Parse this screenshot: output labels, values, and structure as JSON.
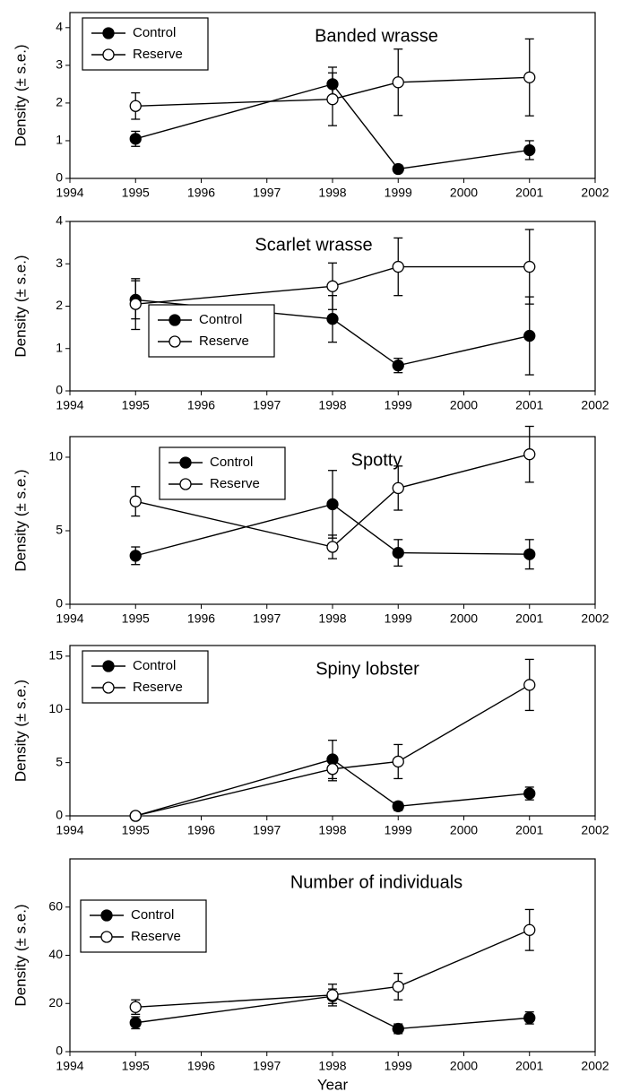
{
  "chart_data": [
    {
      "type": "line",
      "title": "Banded wrasse",
      "ylabel": "Density (± s.e.)",
      "x": [
        1995,
        1998,
        1999,
        2001
      ],
      "xlim": [
        1994,
        2002
      ],
      "xticks": [
        1994,
        1995,
        1996,
        1997,
        1998,
        1999,
        2000,
        2001,
        2002
      ],
      "ylim": [
        0,
        4.4
      ],
      "yticks": [
        0,
        1,
        2,
        3,
        4
      ],
      "grid": false,
      "legend": "upper left",
      "series": [
        {
          "name": "Control",
          "color": "#000000",
          "marker_fill": "#000000",
          "values": [
            1.05,
            2.5,
            0.25,
            0.75
          ],
          "errors": [
            0.2,
            0.45,
            0.1,
            0.25
          ]
        },
        {
          "name": "Reserve",
          "color": "#000000",
          "marker_fill": "#ffffff",
          "values": [
            1.92,
            2.1,
            2.55,
            2.68
          ],
          "errors": [
            0.35,
            0.7,
            0.88,
            1.02
          ]
        }
      ]
    },
    {
      "type": "line",
      "title": "Scarlet wrasse",
      "ylabel": "Density (± s.e.)",
      "x": [
        1995,
        1998,
        1999,
        2001
      ],
      "xlim": [
        1994,
        2002
      ],
      "xticks": [
        1994,
        1995,
        1996,
        1997,
        1998,
        1999,
        2000,
        2001,
        2002
      ],
      "ylim": [
        0,
        4
      ],
      "yticks": [
        0,
        1,
        2,
        3,
        4
      ],
      "grid": false,
      "legend": "lower left",
      "series": [
        {
          "name": "Control",
          "color": "#000000",
          "marker_fill": "#000000",
          "values": [
            2.15,
            1.7,
            0.6,
            1.3
          ],
          "errors": [
            0.45,
            0.55,
            0.17,
            0.92
          ]
        },
        {
          "name": "Reserve",
          "color": "#000000",
          "marker_fill": "#ffffff",
          "values": [
            2.05,
            2.47,
            2.93,
            2.93
          ],
          "errors": [
            0.6,
            0.55,
            0.68,
            0.88
          ]
        }
      ]
    },
    {
      "type": "line",
      "title": "Spotty",
      "ylabel": "Density (± s.e.)",
      "x": [
        1995,
        1998,
        1999,
        2001
      ],
      "xlim": [
        1994,
        2002
      ],
      "xticks": [
        1994,
        1995,
        1996,
        1997,
        1998,
        1999,
        2000,
        2001,
        2002
      ],
      "ylim": [
        0,
        11.4
      ],
      "yticks": [
        0,
        5,
        10
      ],
      "grid": false,
      "legend": "upper center",
      "series": [
        {
          "name": "Control",
          "color": "#000000",
          "marker_fill": "#000000",
          "values": [
            3.3,
            6.8,
            3.5,
            3.4
          ],
          "errors": [
            0.6,
            2.3,
            0.9,
            1.0
          ]
        },
        {
          "name": "Reserve",
          "color": "#000000",
          "marker_fill": "#ffffff",
          "values": [
            7.0,
            3.9,
            7.9,
            10.2
          ],
          "errors": [
            1.0,
            0.8,
            1.5,
            1.9
          ]
        }
      ]
    },
    {
      "type": "line",
      "title": "Spiny lobster",
      "ylabel": "Density (± s.e.)",
      "x": [
        1995,
        1998,
        1999,
        2001
      ],
      "xlim": [
        1994,
        2002
      ],
      "xticks": [
        1994,
        1995,
        1996,
        1997,
        1998,
        1999,
        2000,
        2001,
        2002
      ],
      "ylim": [
        0,
        16
      ],
      "yticks": [
        0,
        5,
        10,
        15
      ],
      "grid": false,
      "legend": "upper left",
      "series": [
        {
          "name": "Control",
          "color": "#000000",
          "marker_fill": "#000000",
          "values": [
            0,
            5.3,
            0.9,
            2.1
          ],
          "errors": [
            0,
            1.8,
            0.4,
            0.6
          ]
        },
        {
          "name": "Reserve",
          "color": "#000000",
          "marker_fill": "#ffffff",
          "values": [
            0,
            4.4,
            5.1,
            12.3
          ],
          "errors": [
            0,
            1.1,
            1.6,
            2.4
          ]
        }
      ]
    },
    {
      "type": "line",
      "title": "Number of individuals",
      "ylabel": "Density (± s.e.)",
      "xlabel": "Year",
      "x": [
        1995,
        1998,
        1999,
        2001
      ],
      "xlim": [
        1994,
        2002
      ],
      "xticks": [
        1994,
        1995,
        1996,
        1997,
        1998,
        1999,
        2000,
        2001,
        2002
      ],
      "ylim": [
        0,
        80
      ],
      "yticks": [
        0,
        20,
        40,
        60
      ],
      "grid": false,
      "legend": "center left",
      "series": [
        {
          "name": "Control",
          "color": "#000000",
          "marker_fill": "#000000",
          "values": [
            12,
            23,
            9.5,
            14
          ],
          "errors": [
            2.5,
            3,
            2,
            2.5
          ]
        },
        {
          "name": "Reserve",
          "color": "#000000",
          "marker_fill": "#ffffff",
          "values": [
            18.5,
            23.5,
            27,
            50.5
          ],
          "errors": [
            3,
            4.5,
            5.5,
            8.5
          ]
        }
      ]
    }
  ]
}
